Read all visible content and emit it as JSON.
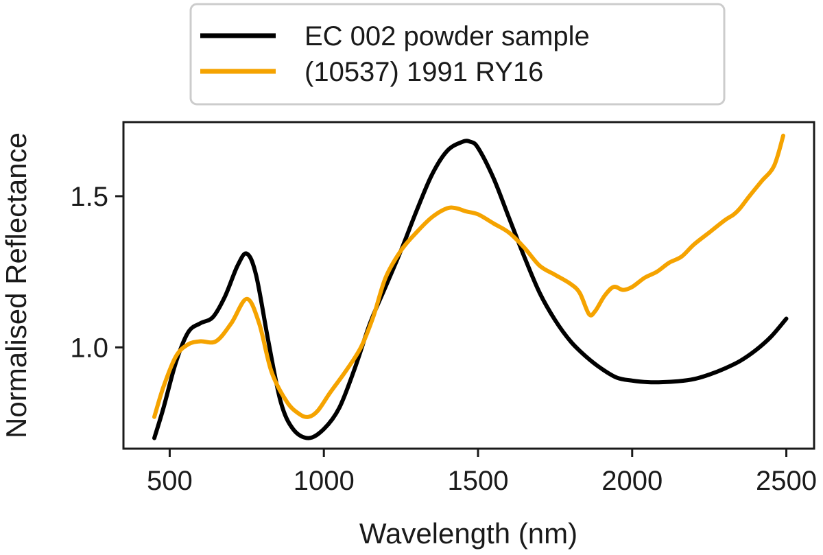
{
  "chart_data": {
    "type": "line",
    "title": "",
    "xlabel": "Wavelength (nm)",
    "ylabel": "Normalised Reflectance",
    "xlim": [
      350,
      2590
    ],
    "ylim": [
      0.665,
      1.745
    ],
    "xticks": [
      500,
      1000,
      1500,
      2000,
      2500
    ],
    "xtick_labels": [
      "500",
      "1000",
      "1500",
      "2000",
      "2500"
    ],
    "yticks": [
      1.0,
      1.5
    ],
    "ytick_labels": [
      "1.0",
      "1.5"
    ],
    "grid": false,
    "legend_position": "top-center-outside",
    "series": [
      {
        "name": "EC 002 powder sample",
        "color": "#000000",
        "x": [
          450,
          480,
          520,
          560,
          600,
          640,
          680,
          720,
          750,
          780,
          820,
          860,
          900,
          950,
          1000,
          1050,
          1100,
          1150,
          1200,
          1250,
          1300,
          1350,
          1400,
          1450,
          1475,
          1500,
          1550,
          1600,
          1650,
          1700,
          1750,
          1800,
          1850,
          1900,
          1950,
          2000,
          2050,
          2100,
          2150,
          2200,
          2250,
          2300,
          2350,
          2400,
          2450,
          2500
        ],
        "y": [
          0.7,
          0.8,
          0.95,
          1.05,
          1.08,
          1.1,
          1.17,
          1.27,
          1.31,
          1.24,
          1.02,
          0.82,
          0.73,
          0.7,
          0.73,
          0.8,
          0.93,
          1.08,
          1.2,
          1.32,
          1.45,
          1.57,
          1.65,
          1.68,
          1.68,
          1.66,
          1.56,
          1.43,
          1.3,
          1.18,
          1.09,
          1.02,
          0.97,
          0.93,
          0.9,
          0.89,
          0.885,
          0.885,
          0.888,
          0.895,
          0.91,
          0.93,
          0.955,
          0.99,
          1.035,
          1.095
        ]
      },
      {
        "name": "(10537) 1991 RY16",
        "color": "#f5a300",
        "x": [
          450,
          480,
          520,
          560,
          600,
          650,
          700,
          750,
          790,
          830,
          880,
          920,
          950,
          980,
          1020,
          1070,
          1120,
          1160,
          1200,
          1250,
          1300,
          1350,
          1400,
          1430,
          1460,
          1500,
          1550,
          1600,
          1650,
          1700,
          1750,
          1800,
          1830,
          1860,
          1880,
          1910,
          1940,
          1970,
          2000,
          2040,
          2080,
          2120,
          2160,
          2200,
          2250,
          2300,
          2330,
          2350,
          2380,
          2420,
          2460,
          2490
        ],
        "y": [
          0.77,
          0.87,
          0.97,
          1.01,
          1.02,
          1.02,
          1.08,
          1.16,
          1.08,
          0.92,
          0.82,
          0.78,
          0.77,
          0.79,
          0.85,
          0.92,
          1.0,
          1.1,
          1.23,
          1.32,
          1.38,
          1.43,
          1.46,
          1.46,
          1.45,
          1.44,
          1.41,
          1.38,
          1.33,
          1.27,
          1.24,
          1.21,
          1.18,
          1.11,
          1.12,
          1.17,
          1.2,
          1.19,
          1.2,
          1.23,
          1.25,
          1.28,
          1.3,
          1.34,
          1.38,
          1.42,
          1.44,
          1.46,
          1.5,
          1.55,
          1.6,
          1.7
        ]
      }
    ]
  }
}
